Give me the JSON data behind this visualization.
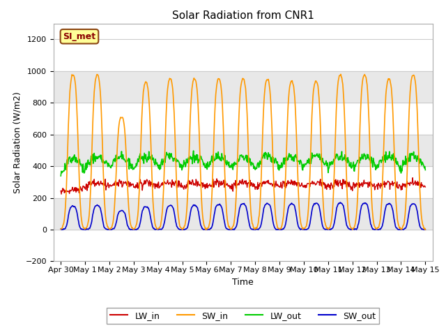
{
  "title": "Solar Radiation from CNR1",
  "xlabel": "Time",
  "ylabel": "Solar Radiation (W/m2)",
  "ylim": [
    -200,
    1300
  ],
  "yticks": [
    -200,
    0,
    200,
    400,
    600,
    800,
    1000,
    1200
  ],
  "annotation_text": "SI_met",
  "annotation_bg": "#FFFF99",
  "annotation_border": "#8B4513",
  "annotation_text_color": "#8B0000",
  "grid_color": "#cccccc",
  "plot_bg": "#ffffff",
  "band_color": "#e8e8e8",
  "colors": {
    "LW_in": "#cc0000",
    "SW_in": "#ff9900",
    "LW_out": "#00cc00",
    "SW_out": "#0000cc"
  },
  "sw_in_peaks": [
    1000,
    1000,
    730,
    950,
    975,
    975,
    975,
    975,
    970,
    960,
    960,
    1000,
    1000,
    975,
    1000
  ],
  "sw_out_peaks": [
    150,
    155,
    120,
    145,
    155,
    155,
    160,
    165,
    165,
    165,
    170,
    170,
    170,
    165,
    165
  ],
  "lw_in_base": 270,
  "lw_out_base": 390
}
